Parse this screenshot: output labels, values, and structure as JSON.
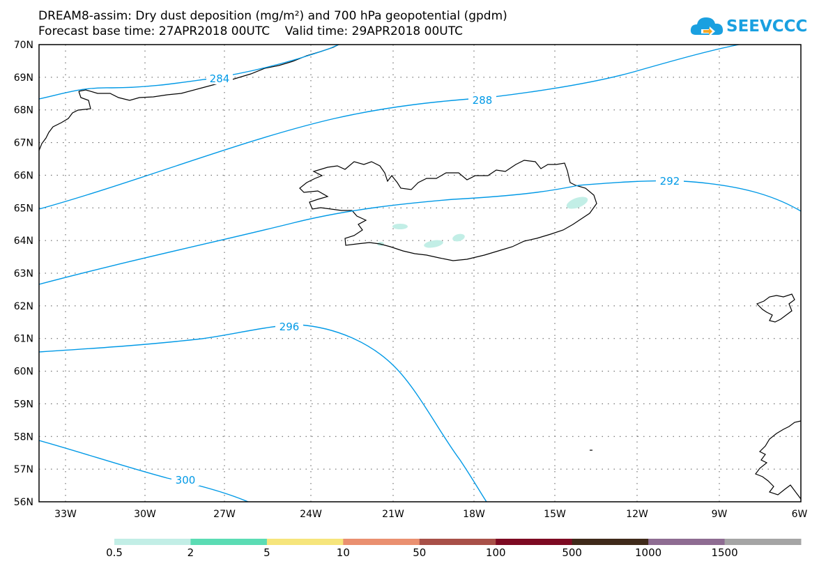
{
  "header": {
    "title_line1": "DREAM8-assim: Dry dust deposition (mg/m²) and 700 hPa geopotential (gpdm)",
    "title_line2": "Forecast base time: 27APR2018 00UTC    Valid time: 29APR2018 00UTC"
  },
  "logo": {
    "text": "SEEVCCC",
    "color": "#1aa0e0"
  },
  "map": {
    "lat_labels": [
      "70N",
      "69N",
      "68N",
      "67N",
      "66N",
      "65N",
      "64N",
      "63N",
      "62N",
      "61N",
      "60N",
      "59N",
      "58N",
      "57N",
      "56N"
    ],
    "lon_labels": [
      "33W",
      "30W",
      "27W",
      "24W",
      "21W",
      "18W",
      "15W",
      "12W",
      "9W",
      "6W"
    ],
    "contour_color": "#0099e6",
    "dust_color": "#c2eee6",
    "contours": [
      {
        "label": "284"
      },
      {
        "label": "288"
      },
      {
        "label": "292"
      },
      {
        "label": "296"
      },
      {
        "label": "300"
      }
    ]
  },
  "colorbar": {
    "labels": [
      "0.5",
      "2",
      "5",
      "10",
      "50",
      "100",
      "500",
      "1000",
      "1500"
    ],
    "colors": [
      "#c2eee6",
      "#5bdcb4",
      "#f6e57c",
      "#ea9070",
      "#a85048",
      "#7d0a22",
      "#3f2a1a",
      "#8e6c92",
      "#a5a5a5"
    ]
  }
}
